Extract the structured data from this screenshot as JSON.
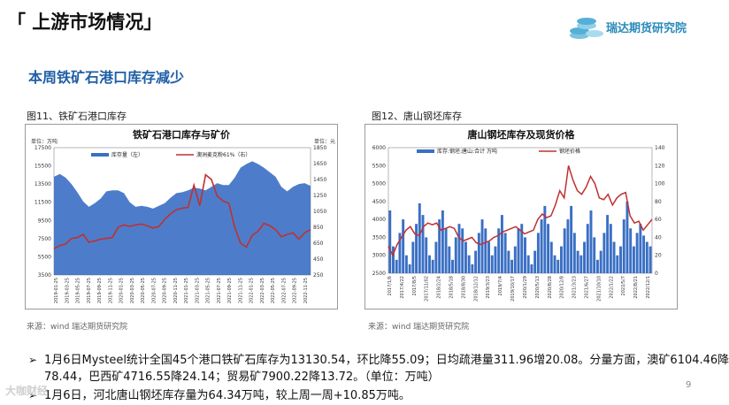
{
  "header": {
    "section_title": "「 上游市场情况」",
    "logo_text": "瑞达期货研究院"
  },
  "headline": "本周铁矿石港口库存减少",
  "figures": [
    {
      "caption": "图11、铁矿石港口库存",
      "source": "来源：wind   瑞达期货研究院"
    },
    {
      "caption": "图12、唐山钢坯库存",
      "source": "来源：wind   瑞达期货研究院"
    }
  ],
  "bullets": [
    {
      "line1": "1月6日Mysteel统计全国45个港口铁矿石库存为13130.54，环比降55.09；日均疏港量311.96增20.08。分量方面，澳矿6104.46降",
      "line2": "78.44，巴西矿4716.55降24.14；贸易矿7900.22降13.72。（单位：万吨）"
    },
    {
      "line1": "1月6日，河北唐山钢坯库存量为64.34万吨，较上周一周+10.85万吨。"
    }
  ],
  "page_number": "9",
  "watermark": "大咖财经",
  "colors": {
    "area_blue": "#3a6fc4",
    "line_red": "#c03030",
    "headline_blue": "#1f5fa5",
    "logo_blue": "#2a8ab9"
  },
  "chart_data": [
    {
      "type": "area",
      "title": "铁矿石港口库存与矿价",
      "left_unit": "单位：万吨",
      "right_unit": "单位：元",
      "legend": [
        "库存量（左）",
        "澳洲麦克粉61%（右）"
      ],
      "ylim_left": [
        3500,
        17500
      ],
      "yticks_left": [
        "17500",
        "15500",
        "13500",
        "11500",
        "9500",
        "7500",
        "5500",
        "3500"
      ],
      "ylim_right": [
        250,
        1850
      ],
      "yticks_right": [
        "1850",
        "1650",
        "1450",
        "1250",
        "1050",
        "850",
        "650",
        "450",
        "250"
      ],
      "x_ticks": [
        "2019-01-25",
        "2019-03-25",
        "2019-05-25",
        "2019-07-25",
        "2019-09-25",
        "2019-11-25",
        "2020-01-25",
        "2020-03-25",
        "2020-05-25",
        "2020-07-25",
        "2020-09-25",
        "2020-11-25",
        "2021-01-25",
        "2021-03-25",
        "2021-05-25",
        "2021-07-25",
        "2021-09-25",
        "2021-11-25",
        "2022-01-25",
        "2022-03-25",
        "2022-05-25",
        "2022-07-25",
        "2022-09-25",
        "2022-11-25"
      ],
      "series": [
        {
          "name": "库存量（左）",
          "kind": "area",
          "axis": "left",
          "values": [
            14300,
            14600,
            14200,
            13500,
            12600,
            11600,
            11000,
            11400,
            11900,
            12700,
            12800,
            12800,
            12500,
            11500,
            11000,
            11100,
            11000,
            10800,
            11100,
            11400,
            12000,
            12500,
            12600,
            12800,
            13100,
            13000,
            12800,
            13200,
            13600,
            13400,
            13400,
            14200,
            15300,
            15700,
            16000,
            15700,
            15300,
            14800,
            14300,
            13200,
            12700,
            13200,
            13500,
            13600,
            13300
          ]
        },
        {
          "name": "澳洲麦克粉61%（右）",
          "kind": "line",
          "axis": "right",
          "values": [
            580,
            620,
            640,
            710,
            720,
            760,
            660,
            680,
            700,
            710,
            720,
            850,
            880,
            860,
            880,
            890,
            870,
            840,
            860,
            950,
            1020,
            1070,
            1090,
            1100,
            1380,
            1120,
            1510,
            1450,
            1240,
            1180,
            1150,
            850,
            650,
            600,
            750,
            800,
            900,
            870,
            820,
            730,
            760,
            780,
            700,
            780,
            820
          ]
        }
      ]
    },
    {
      "type": "bar",
      "title": "唐山钢坯库存及现货价格",
      "legend": [
        "库存:钢坯:唐山:合计   万吨",
        "钢坯价格"
      ],
      "ylim_left": [
        2500,
        6000
      ],
      "yticks_left": [
        "6000",
        "5500",
        "5000",
        "4500",
        "4000",
        "3500",
        "3000",
        "2500"
      ],
      "ylim_right": [
        0,
        140
      ],
      "yticks_right": [
        "140",
        "120",
        "100",
        "80",
        "60",
        "40",
        "20",
        "0"
      ],
      "x_ticks": [
        "2017/1/6",
        "2017/4/22",
        "2017/8/5",
        "2017/11/02",
        "2018/2/24",
        "2018/5/18",
        "2018/8/30",
        "2018/12/12",
        "2019/3/23",
        "2019/7/4",
        "2019/10/17",
        "2020/1/29",
        "2020/5/13",
        "2020/8/28",
        "2020/12/8",
        "2021/3/23",
        "2021/6/27",
        "2021/10/10",
        "2022/1/22",
        "2022/5/7",
        "2022/8/21",
        "2022/12/1"
      ],
      "series": [
        {
          "name": "库存:钢坯:唐山:合计   万吨",
          "kind": "bar",
          "axis": "right",
          "values": [
            70,
            30,
            15,
            45,
            60,
            20,
            10,
            35,
            55,
            78,
            65,
            40,
            20,
            15,
            35,
            60,
            70,
            50,
            30,
            15,
            40,
            55,
            50,
            35,
            20,
            10,
            25,
            45,
            60,
            50,
            35,
            20,
            30,
            50,
            65,
            45,
            25,
            15,
            30,
            50,
            55,
            40,
            20,
            10,
            25,
            45,
            60,
            75,
            55,
            35,
            20,
            15,
            30,
            50,
            60,
            75,
            45,
            25,
            20,
            35,
            55,
            70,
            40,
            15,
            25,
            45,
            65,
            55,
            35,
            20,
            30,
            60,
            80,
            50,
            30,
            45,
            55,
            42,
            35,
            30
          ]
        },
        {
          "name": "钢坯价格",
          "kind": "line",
          "axis": "left",
          "values": [
            3250,
            3000,
            3300,
            3500,
            3700,
            3800,
            3600,
            3550,
            3800,
            3900,
            3850,
            3900,
            3700,
            3750,
            3800,
            3750,
            3500,
            3400,
            3450,
            3500,
            3350,
            3300,
            3350,
            3400,
            3500,
            3550,
            3650,
            3700,
            3750,
            3800,
            3700,
            3600,
            3650,
            3700,
            4000,
            4150,
            4050,
            4100,
            4400,
            4800,
            4600,
            5500,
            5100,
            4800,
            4700,
            4900,
            5200,
            5000,
            4600,
            4550,
            4700,
            4400,
            4600,
            4700,
            4750,
            4100,
            3900,
            3950,
            3700,
            3850,
            4000
          ]
        }
      ]
    }
  ]
}
